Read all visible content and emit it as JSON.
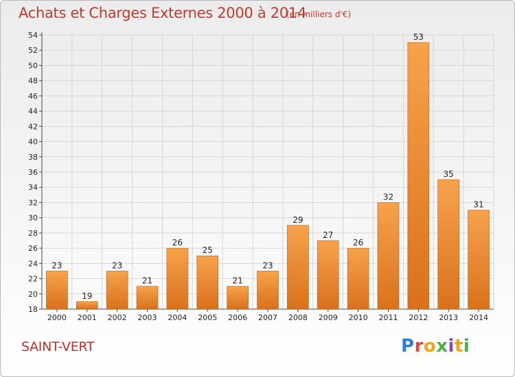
{
  "header": {
    "title": "Achats et Charges Externes 2000 à 2014",
    "unit": "(en milliers d'€)"
  },
  "footer": {
    "commune": "SAINT-VERT",
    "logo_letters": [
      "P",
      "r",
      "o",
      "x",
      "i",
      "t",
      "i"
    ],
    "logo_colors": [
      "#2a7fd0",
      "#e5413f",
      "#f2a31b",
      "#4bb049",
      "#8e44ad",
      "#f2a31b",
      "#4bb049"
    ]
  },
  "colors": {
    "bar_light": "#f7a24c",
    "bar_dark": "#d9711c",
    "bar_edge": "#b95e12",
    "title": "#c0392b",
    "grid": "#d6d6d6"
  },
  "chart_data": {
    "type": "bar",
    "title": "Achats et Charges Externes 2000 à 2014",
    "xlabel": "",
    "ylabel": "",
    "categories": [
      "2000",
      "2001",
      "2002",
      "2003",
      "2004",
      "2005",
      "2006",
      "2007",
      "2008",
      "2009",
      "2010",
      "2011",
      "2012",
      "2013",
      "2014"
    ],
    "values": [
      23,
      19,
      23,
      21,
      26,
      25,
      21,
      23,
      29,
      27,
      26,
      32,
      53,
      35,
      31
    ],
    "ylim": [
      18,
      54
    ],
    "yticks": [
      18,
      20,
      22,
      24,
      26,
      28,
      30,
      32,
      34,
      36,
      38,
      40,
      42,
      44,
      46,
      48,
      50,
      52,
      54
    ],
    "grid": true,
    "legend": "none"
  }
}
